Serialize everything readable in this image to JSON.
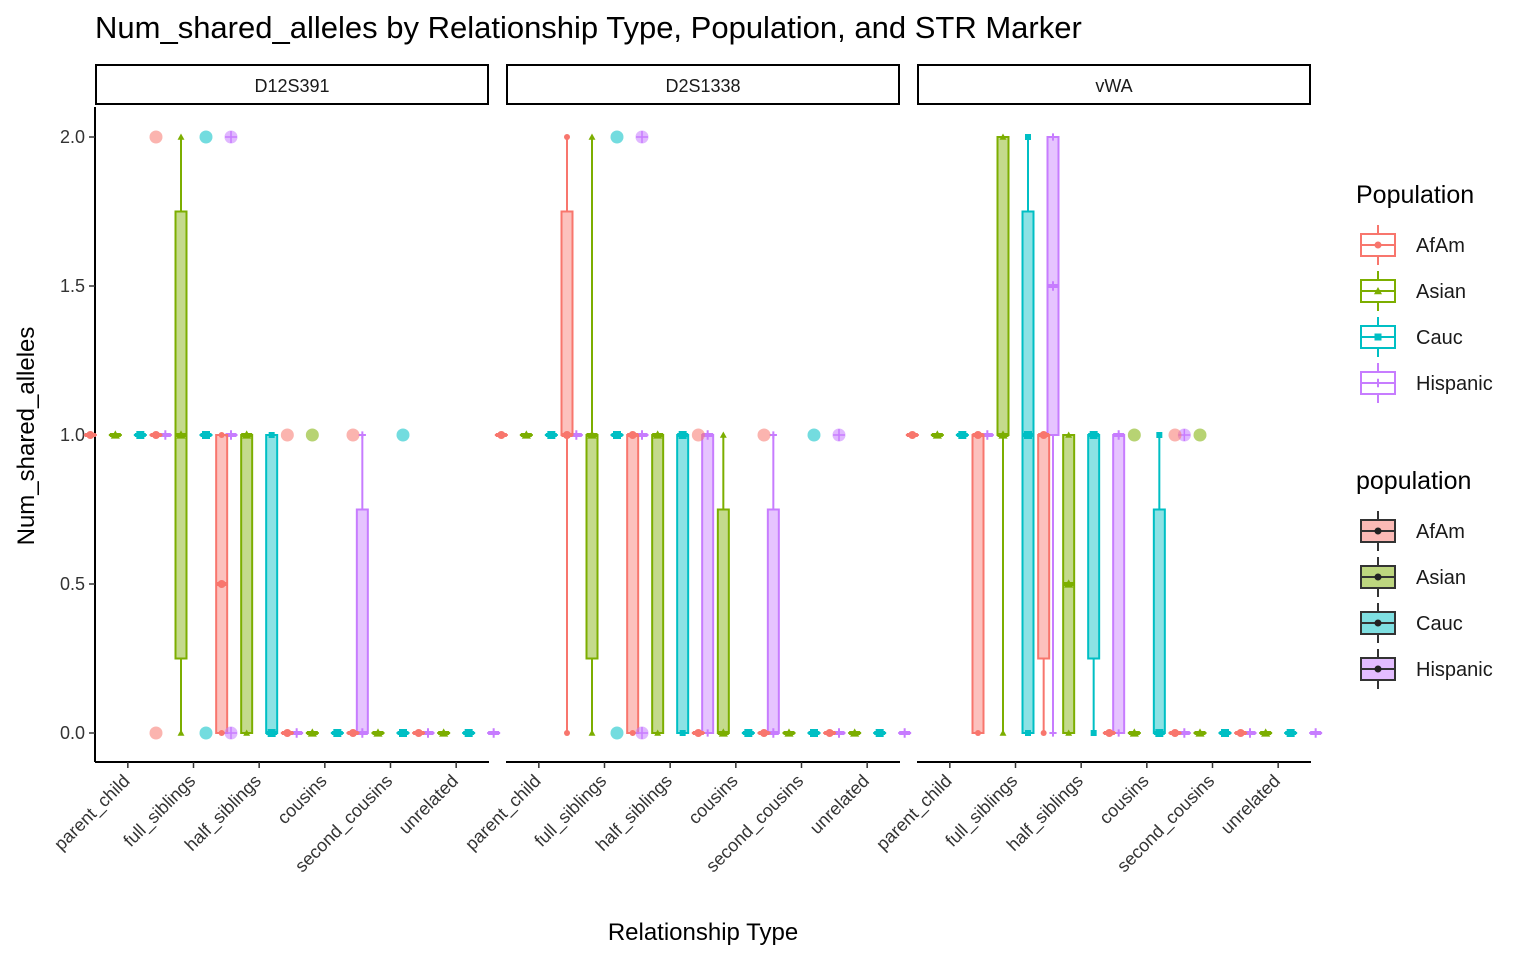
{
  "chart_data": {
    "type": "box",
    "title": "Num_shared_alleles by Relationship Type, Population, and STR Marker",
    "xlabel": "Relationship Type",
    "ylabel": "Num_shared_alleles",
    "ylim": [
      -0.09,
      2.09
    ],
    "yticks": [
      0.0,
      0.5,
      1.0,
      1.5,
      2.0
    ],
    "ytick_labels": [
      "0.0",
      "0.5",
      "1.0",
      "1.5",
      "2.0"
    ],
    "categories": [
      "parent_child",
      "full_siblings",
      "half_siblings",
      "cousins",
      "second_cousins",
      "unrelated"
    ],
    "populations": [
      "AfAm",
      "Asian",
      "Cauc",
      "Hispanic"
    ],
    "colors": {
      "AfAm": "#F8766D",
      "Asian": "#7CAE00",
      "Cauc": "#00BFC4",
      "Hispanic": "#C77CFF"
    },
    "grid": false,
    "legends": [
      {
        "title": "Population",
        "items": [
          "AfAm",
          "Asian",
          "Cauc",
          "Hispanic"
        ],
        "style": "colored-outline"
      },
      {
        "title": "population",
        "items": [
          "AfAm",
          "Asian",
          "Cauc",
          "Hispanic"
        ],
        "style": "filled-black-outline"
      }
    ],
    "legend_position": "right",
    "panels": [
      {
        "marker": "D12S391",
        "boxes": {
          "parent_child": {
            "AfAm": [
              1,
              1,
              1,
              1,
              1
            ],
            "Asian": [
              1,
              1,
              1,
              1,
              1
            ],
            "Cauc": [
              1,
              1,
              1,
              1,
              1
            ],
            "Hispanic": [
              1,
              1,
              1,
              1,
              1
            ]
          },
          "full_siblings": {
            "AfAm": [
              1,
              1,
              1,
              1,
              1
            ],
            "Asian": [
              0,
              0.25,
              1,
              1.75,
              2
            ],
            "Cauc": [
              1,
              1,
              1,
              1,
              1
            ],
            "Hispanic": [
              1,
              1,
              1,
              1,
              1
            ]
          },
          "half_siblings": {
            "AfAm": [
              0,
              0,
              0.5,
              1,
              1
            ],
            "Asian": [
              0,
              0,
              1,
              1,
              1
            ],
            "Cauc": [
              0,
              0,
              0,
              1,
              1
            ],
            "Hispanic": [
              0,
              0,
              0,
              0,
              0
            ]
          },
          "cousins": {
            "AfAm": [
              0,
              0,
              0,
              0,
              0
            ],
            "Asian": [
              0,
              0,
              0,
              0,
              0
            ],
            "Cauc": [
              0,
              0,
              0,
              0,
              0
            ],
            "Hispanic": [
              0,
              0,
              0,
              0.75,
              1
            ]
          },
          "second_cousins": {
            "AfAm": [
              0,
              0,
              0,
              0,
              0
            ],
            "Asian": [
              0,
              0,
              0,
              0,
              0
            ],
            "Cauc": [
              0,
              0,
              0,
              0,
              0
            ],
            "Hispanic": [
              0,
              0,
              0,
              0,
              0
            ]
          },
          "unrelated": {
            "AfAm": [
              0,
              0,
              0,
              0,
              0
            ],
            "Asian": [
              0,
              0,
              0,
              0,
              0
            ],
            "Cauc": [
              0,
              0,
              0,
              0,
              0
            ],
            "Hispanic": [
              0,
              0,
              0,
              0,
              0
            ]
          }
        },
        "outliers": [
          {
            "cat": "full_siblings",
            "pop": "AfAm",
            "y": 2
          },
          {
            "cat": "full_siblings",
            "pop": "AfAm",
            "y": 0
          },
          {
            "cat": "full_siblings",
            "pop": "Cauc",
            "y": 2
          },
          {
            "cat": "full_siblings",
            "pop": "Cauc",
            "y": 0
          },
          {
            "cat": "full_siblings",
            "pop": "Hispanic",
            "y": 2
          },
          {
            "cat": "full_siblings",
            "pop": "Hispanic",
            "y": 0
          },
          {
            "cat": "cousins",
            "pop": "AfAm",
            "y": 1
          },
          {
            "cat": "cousins",
            "pop": "Asian",
            "y": 1
          },
          {
            "cat": "second_cousins",
            "pop": "AfAm",
            "y": 1
          },
          {
            "cat": "second_cousins",
            "pop": "Cauc",
            "y": 1
          }
        ]
      },
      {
        "marker": "D2S1338",
        "boxes": {
          "parent_child": {
            "AfAm": [
              1,
              1,
              1,
              1,
              1
            ],
            "Asian": [
              1,
              1,
              1,
              1,
              1
            ],
            "Cauc": [
              1,
              1,
              1,
              1,
              1
            ],
            "Hispanic": [
              1,
              1,
              1,
              1,
              1
            ]
          },
          "full_siblings": {
            "AfAm": [
              0,
              1,
              1,
              1.75,
              2
            ],
            "Asian": [
              0,
              0.25,
              1,
              1,
              2
            ],
            "Cauc": [
              1,
              1,
              1,
              1,
              1
            ],
            "Hispanic": [
              1,
              1,
              1,
              1,
              1
            ]
          },
          "half_siblings": {
            "AfAm": [
              0,
              0,
              1,
              1,
              1
            ],
            "Asian": [
              0,
              0,
              1,
              1,
              1
            ],
            "Cauc": [
              0,
              0,
              1,
              1,
              1
            ],
            "Hispanic": [
              0,
              0,
              1,
              1,
              1
            ]
          },
          "cousins": {
            "AfAm": [
              0,
              0,
              0,
              0,
              0
            ],
            "Asian": [
              0,
              0,
              0,
              0.75,
              1
            ],
            "Cauc": [
              0,
              0,
              0,
              0,
              0
            ],
            "Hispanic": [
              0,
              0,
              0,
              0.75,
              1
            ]
          },
          "second_cousins": {
            "AfAm": [
              0,
              0,
              0,
              0,
              0
            ],
            "Asian": [
              0,
              0,
              0,
              0,
              0
            ],
            "Cauc": [
              0,
              0,
              0,
              0,
              0
            ],
            "Hispanic": [
              0,
              0,
              0,
              0,
              0
            ]
          },
          "unrelated": {
            "AfAm": [
              0,
              0,
              0,
              0,
              0
            ],
            "Asian": [
              0,
              0,
              0,
              0,
              0
            ],
            "Cauc": [
              0,
              0,
              0,
              0,
              0
            ],
            "Hispanic": [
              0,
              0,
              0,
              0,
              0
            ]
          }
        },
        "outliers": [
          {
            "cat": "full_siblings",
            "pop": "Cauc",
            "y": 2
          },
          {
            "cat": "full_siblings",
            "pop": "Cauc",
            "y": 0
          },
          {
            "cat": "full_siblings",
            "pop": "Hispanic",
            "y": 2
          },
          {
            "cat": "full_siblings",
            "pop": "Hispanic",
            "y": 0
          },
          {
            "cat": "cousins",
            "pop": "AfAm",
            "y": 1
          },
          {
            "cat": "second_cousins",
            "pop": "AfAm",
            "y": 1
          },
          {
            "cat": "second_cousins",
            "pop": "Cauc",
            "y": 1
          },
          {
            "cat": "second_cousins",
            "pop": "Hispanic",
            "y": 1
          }
        ]
      },
      {
        "marker": "vWA",
        "boxes": {
          "parent_child": {
            "AfAm": [
              1,
              1,
              1,
              1,
              1
            ],
            "Asian": [
              1,
              1,
              1,
              1,
              1
            ],
            "Cauc": [
              1,
              1,
              1,
              1,
              1
            ],
            "Hispanic": [
              1,
              1,
              1,
              1,
              1
            ]
          },
          "full_siblings": {
            "AfAm": [
              0,
              0,
              1,
              1,
              1
            ],
            "Asian": [
              0,
              1,
              1,
              2,
              2
            ],
            "Cauc": [
              0,
              0,
              1,
              1.75,
              2
            ],
            "Hispanic": [
              0,
              1,
              1.5,
              2,
              2
            ]
          },
          "half_siblings": {
            "AfAm": [
              0,
              0.25,
              1,
              1,
              1
            ],
            "Asian": [
              0,
              0,
              0.5,
              1,
              1
            ],
            "Cauc": [
              0,
              0.25,
              1,
              1,
              1
            ],
            "Hispanic": [
              0,
              0,
              1,
              1,
              1
            ]
          },
          "cousins": {
            "AfAm": [
              0,
              0,
              0,
              0,
              0
            ],
            "Asian": [
              0,
              0,
              0,
              0,
              0
            ],
            "Cauc": [
              0,
              0,
              0,
              0.75,
              1
            ],
            "Hispanic": [
              0,
              0,
              0,
              0,
              0
            ]
          },
          "second_cousins": {
            "AfAm": [
              0,
              0,
              0,
              0,
              0
            ],
            "Asian": [
              0,
              0,
              0,
              0,
              0
            ],
            "Cauc": [
              0,
              0,
              0,
              0,
              0
            ],
            "Hispanic": [
              0,
              0,
              0,
              0,
              0
            ]
          },
          "unrelated": {
            "AfAm": [
              0,
              0,
              0,
              0,
              0
            ],
            "Asian": [
              0,
              0,
              0,
              0,
              0
            ],
            "Cauc": [
              0,
              0,
              0,
              0,
              0
            ],
            "Hispanic": [
              0,
              0,
              0,
              0,
              0
            ]
          }
        },
        "outliers": [
          {
            "cat": "cousins",
            "pop": "Asian",
            "y": 1
          },
          {
            "cat": "cousins",
            "pop": "Hispanic",
            "y": 1
          },
          {
            "cat": "second_cousins",
            "pop": "AfAm",
            "y": 1
          },
          {
            "cat": "second_cousins",
            "pop": "Asian",
            "y": 1
          }
        ]
      }
    ]
  }
}
